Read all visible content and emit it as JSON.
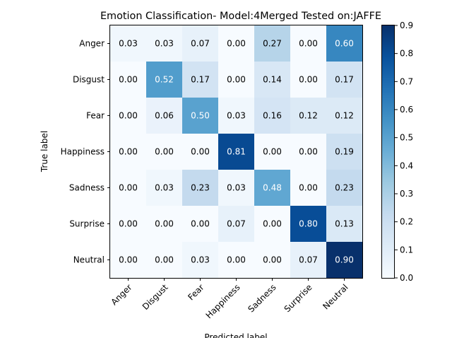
{
  "chart_data": {
    "type": "heatmap",
    "title": "Emotion Classification- Model:4Merged Tested on:JAFFE",
    "xlabel": "Predicted label",
    "ylabel": "True label",
    "x_categories": [
      "Anger",
      "Disgust",
      "Fear",
      "Happiness",
      "Sadness",
      "Surprise",
      "Neutral"
    ],
    "y_categories": [
      "Anger",
      "Disgust",
      "Fear",
      "Happiness",
      "Sadness",
      "Surprise",
      "Neutral"
    ],
    "values": [
      [
        0.03,
        0.03,
        0.07,
        0.0,
        0.27,
        0.0,
        0.6
      ],
      [
        0.0,
        0.52,
        0.17,
        0.0,
        0.14,
        0.0,
        0.17
      ],
      [
        0.0,
        0.06,
        0.5,
        0.03,
        0.16,
        0.12,
        0.12
      ],
      [
        0.0,
        0.0,
        0.0,
        0.81,
        0.0,
        0.0,
        0.19
      ],
      [
        0.0,
        0.03,
        0.23,
        0.03,
        0.48,
        0.0,
        0.23
      ],
      [
        0.0,
        0.0,
        0.0,
        0.07,
        0.0,
        0.8,
        0.13
      ],
      [
        0.0,
        0.0,
        0.03,
        0.0,
        0.0,
        0.07,
        0.9
      ]
    ],
    "value_format": "0.00",
    "colormap": "Blues",
    "colorbar": {
      "range": [
        0.0,
        0.9
      ],
      "ticks": [
        "0.0",
        "0.1",
        "0.2",
        "0.3",
        "0.4",
        "0.5",
        "0.6",
        "0.7",
        "0.8",
        "0.9"
      ]
    },
    "text_colors": {
      "dark_cell": "#ffffff",
      "light_cell": "#000000"
    },
    "grid": false
  }
}
